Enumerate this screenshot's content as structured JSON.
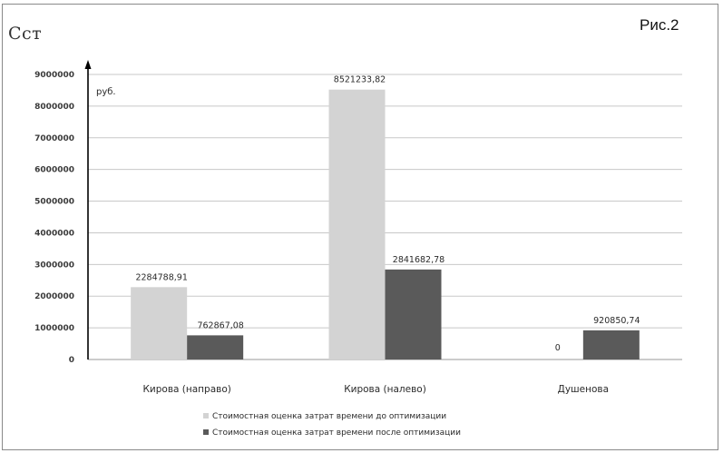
{
  "header": {
    "title": "Сст",
    "figure_label": "Рис.2"
  },
  "chart_data": {
    "type": "bar",
    "ylabel": "руб.",
    "ylim": [
      0,
      9000000
    ],
    "yticks": [
      "9000000",
      "8000000",
      "7000000",
      "6000000",
      "5000000",
      "4000000",
      "3000000",
      "2000000",
      "1000000",
      "0"
    ],
    "categories": [
      "Кирова (направо)",
      "Кирова (налево)",
      "Душенова"
    ],
    "series": [
      {
        "name": "Стоимостная оценка затрат времени до оптимизации",
        "values": [
          2284788.91,
          8521233.82,
          0
        ],
        "labels": [
          "2284788,91",
          "8521233,82",
          "0"
        ],
        "color": "#d3d3d3"
      },
      {
        "name": "Стоимостная оценка затрат времени после оптимизации",
        "values": [
          762867.08,
          2841682.78,
          920850.74
        ],
        "labels": [
          "762867,08",
          "2841682,78",
          "920850,74"
        ],
        "color": "#5a5a5a"
      }
    ],
    "grid": true,
    "legend_position": "bottom"
  }
}
